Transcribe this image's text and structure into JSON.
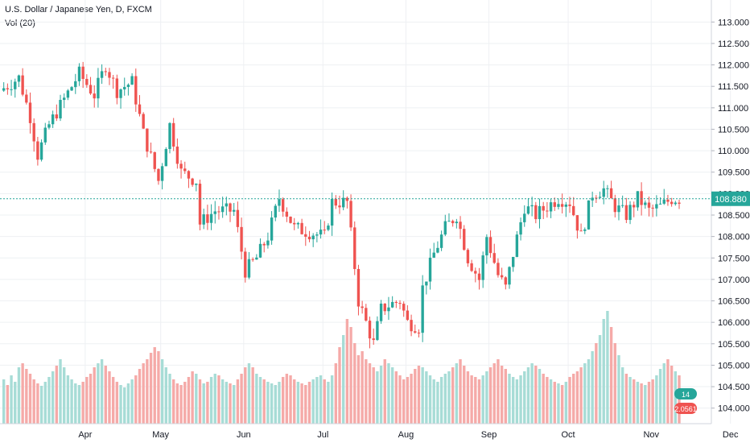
{
  "header": {
    "symbol_line": "U.S. Dollar / Japanese Yen, D, FXCM",
    "indicator_line": "Vol (20)"
  },
  "colors": {
    "up": "#26a69a",
    "down": "#ef5350",
    "up_vol": "#a7dcd6",
    "down_vol": "#f5aaa8",
    "grid": "#eef0f3",
    "price_line": "#26a69a",
    "axis_text": "#131722"
  },
  "chart_data": {
    "type": "candlestick",
    "ylim": [
      103.75,
      113.25
    ],
    "y_ticks": [
      "113.000",
      "112.500",
      "112.000",
      "111.500",
      "111.000",
      "110.500",
      "110.000",
      "109.500",
      "109.000",
      "108.500",
      "108.000",
      "107.500",
      "107.000",
      "106.500",
      "106.000",
      "105.500",
      "105.000",
      "104.500",
      "104.000"
    ],
    "x_labels": [
      "Apr",
      "May",
      "Jun",
      "Jul",
      "Aug",
      "Sep",
      "Oct",
      "Nov",
      "Dec"
    ],
    "last_price": "108.880",
    "volume_labels": [
      "14",
      "2.0561"
    ],
    "bars": 180,
    "x_label_positions": [
      10,
      30,
      52,
      73,
      95,
      117,
      138,
      160,
      181
    ],
    "anchors": [
      [
        0,
        111.4
      ],
      [
        5,
        111.7
      ],
      [
        8,
        110.8
      ],
      [
        10,
        109.9
      ],
      [
        13,
        110.6
      ],
      [
        17,
        111.2
      ],
      [
        21,
        111.8
      ],
      [
        25,
        111.3
      ],
      [
        28,
        112.0
      ],
      [
        31,
        111.4
      ],
      [
        35,
        111.6
      ],
      [
        38,
        110.4
      ],
      [
        42,
        109.3
      ],
      [
        45,
        110.6
      ],
      [
        48,
        109.5
      ],
      [
        52,
        109.3
      ],
      [
        53,
        108.3
      ],
      [
        57,
        108.6
      ],
      [
        62,
        108.6
      ],
      [
        65,
        107.2
      ],
      [
        68,
        107.5
      ],
      [
        71,
        108.0
      ],
      [
        74,
        108.9
      ],
      [
        78,
        108.2
      ],
      [
        82,
        108.1
      ],
      [
        86,
        108.0
      ],
      [
        88,
        108.8
      ],
      [
        92,
        108.8
      ],
      [
        94,
        107.3
      ],
      [
        95,
        106.5
      ],
      [
        97,
        106.0
      ],
      [
        99,
        105.5
      ],
      [
        101,
        106.3
      ],
      [
        103,
        106.4
      ],
      [
        106,
        106.5
      ],
      [
        108,
        106.0
      ],
      [
        111,
        105.9
      ],
      [
        112,
        106.8
      ],
      [
        115,
        107.6
      ],
      [
        118,
        108.2
      ],
      [
        121,
        108.5
      ],
      [
        124,
        107.5
      ],
      [
        127,
        107.0
      ],
      [
        129,
        108.0
      ],
      [
        132,
        107.1
      ],
      [
        134,
        106.8
      ],
      [
        136,
        107.6
      ],
      [
        139,
        108.7
      ],
      [
        142,
        108.5
      ],
      [
        145,
        108.7
      ],
      [
        148,
        108.9
      ],
      [
        151,
        108.8
      ],
      [
        154,
        108.0
      ],
      [
        157,
        109.0
      ],
      [
        160,
        109.1
      ],
      [
        163,
        108.7
      ],
      [
        166,
        108.5
      ],
      [
        169,
        108.9
      ],
      [
        172,
        108.6
      ],
      [
        175,
        108.7
      ],
      [
        178,
        108.88
      ]
    ],
    "volume_pattern": [
      55,
      48,
      60,
      52,
      70,
      75,
      68,
      62,
      55,
      50,
      47,
      52,
      58,
      65,
      72,
      80,
      70,
      60,
      55,
      50,
      48,
      52,
      58,
      62,
      70,
      75,
      80,
      72,
      65,
      58,
      52,
      48,
      45,
      50,
      55,
      60,
      68,
      75,
      80,
      88,
      95,
      90,
      80,
      70,
      62,
      55,
      50,
      48,
      52,
      58,
      65,
      62,
      55,
      50,
      52,
      58,
      62,
      60,
      55,
      52,
      50,
      48,
      55,
      62,
      70,
      75,
      70,
      62,
      58,
      55,
      52,
      50,
      48,
      52,
      58,
      62,
      60,
      55,
      52,
      50,
      48,
      52,
      55,
      58,
      60,
      55,
      52,
      60,
      75,
      95,
      110,
      130,
      120,
      100,
      85,
      90,
      80,
      75,
      70,
      65,
      72,
      80,
      75,
      70,
      65,
      60,
      55,
      58,
      62,
      68,
      72,
      70,
      65,
      60,
      55,
      52,
      58,
      62,
      65,
      70,
      75,
      80,
      72,
      65,
      60,
      58,
      55,
      60,
      65,
      70,
      75,
      80,
      72,
      68,
      62,
      58,
      55,
      60,
      65,
      70,
      75,
      72,
      68,
      62,
      58,
      55,
      52,
      50,
      48,
      52,
      58,
      62,
      65,
      70,
      75,
      80,
      90,
      100,
      110,
      130,
      140,
      120,
      100,
      85,
      70,
      62,
      58,
      55,
      52,
      50,
      48,
      52,
      55,
      60,
      68,
      75,
      80,
      72,
      65,
      60
    ]
  }
}
